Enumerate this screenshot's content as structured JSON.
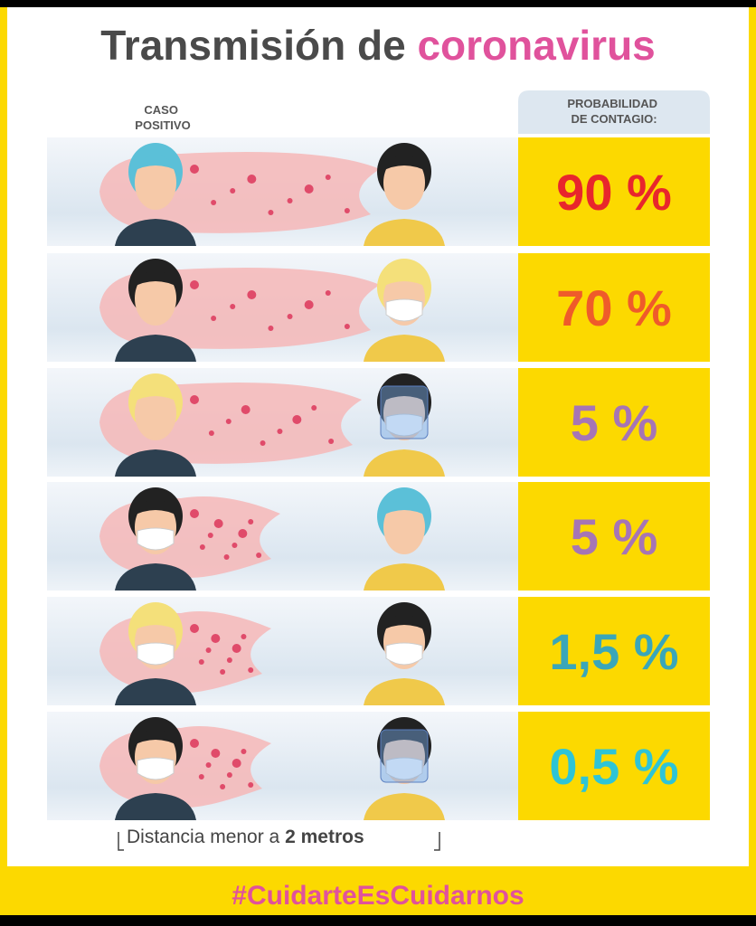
{
  "header": {
    "title_part1": "Transmisión de",
    "title_part2": "coronavirus",
    "left_label": [
      "CASO",
      "POSITIVO"
    ],
    "right_label": [
      "PROBABILIDAD",
      "DE CONTAGIO:"
    ]
  },
  "rows": [
    {
      "probability": "90 %",
      "color": "#e8262c"
    },
    {
      "probability": "70 %",
      "color": "#ef5b2a"
    },
    {
      "probability": "5 %",
      "color": "#a675b5"
    },
    {
      "probability": "5 %",
      "color": "#a675b5"
    },
    {
      "probability": "1,5 %",
      "color": "#3aa6b9"
    },
    {
      "probability": "0,5 %",
      "color": "#2ec4d6"
    }
  ],
  "footer": {
    "distance_text": "Distancia menor a",
    "distance_bold": "2 metros",
    "hashtag": "#CuidarteEsCuidarnos"
  }
}
